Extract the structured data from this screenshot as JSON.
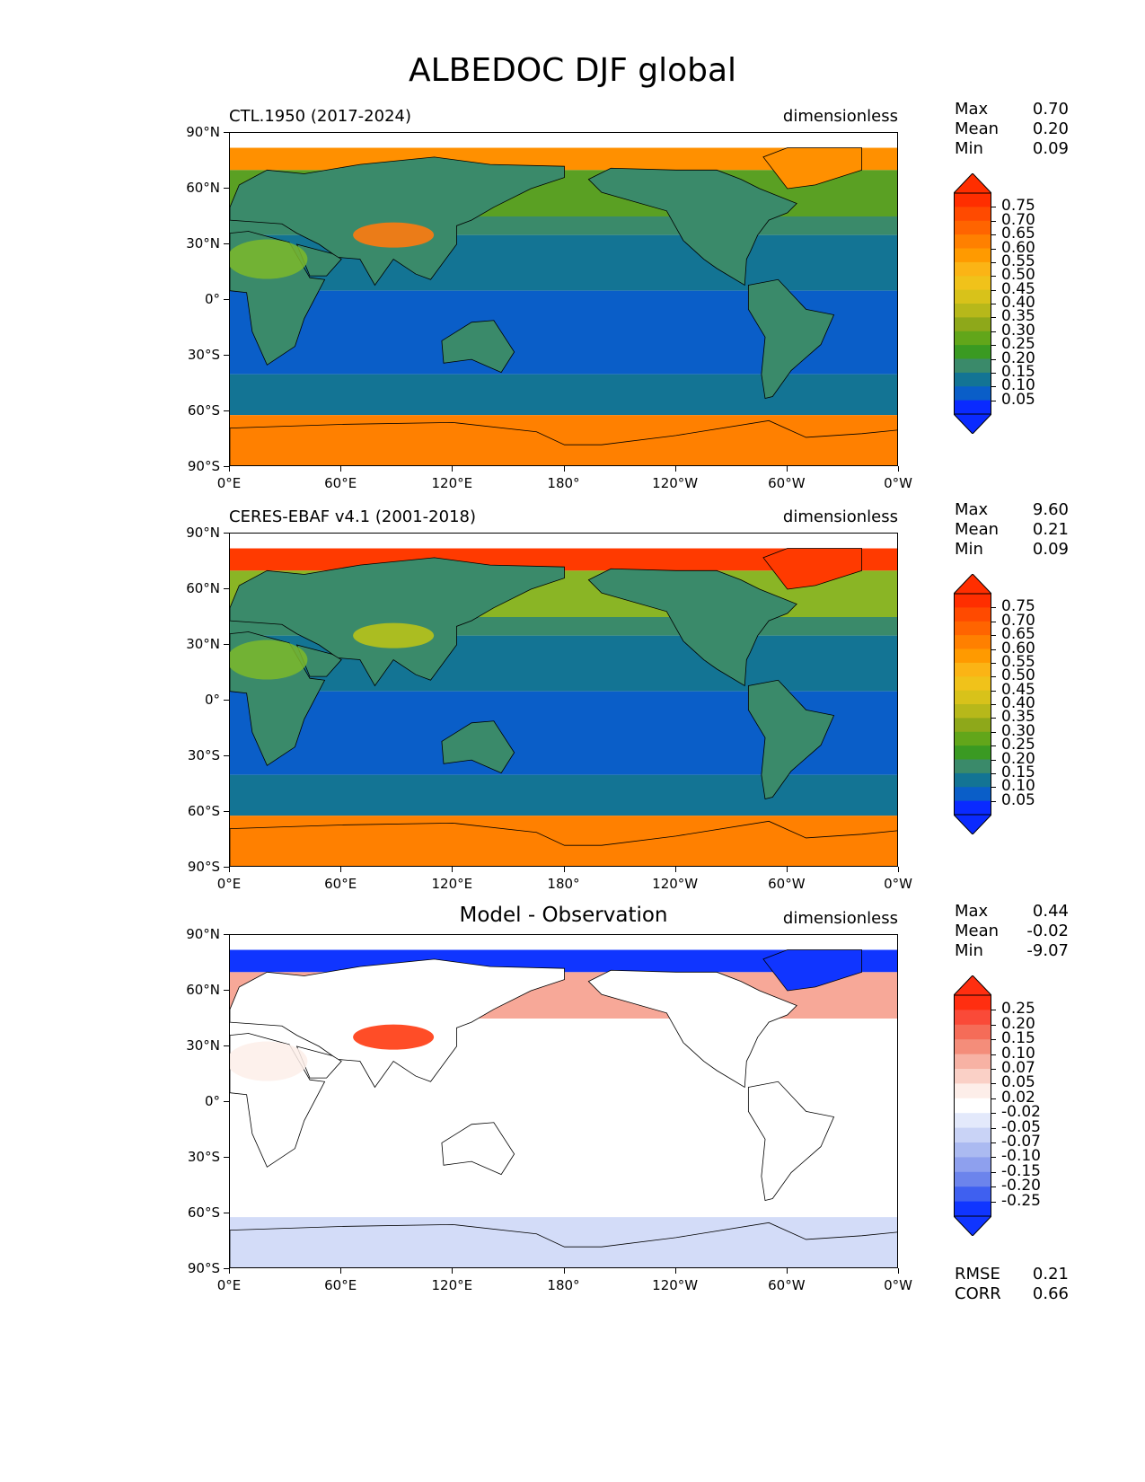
{
  "figure": {
    "title": "ALBEDOC DJF global"
  },
  "axes": {
    "y_ticks": [
      "90°N",
      "60°N",
      "30°N",
      "0°",
      "30°S",
      "60°S",
      "90°S"
    ],
    "x_ticks": [
      "0°E",
      "60°E",
      "120°E",
      "180°",
      "120°W",
      "60°W",
      "0°W"
    ]
  },
  "panels": [
    {
      "title_left": "CTL.1950 (2017-2024)",
      "title_center": "",
      "units": "dimensionless",
      "stats": [
        {
          "label": "Max",
          "value": "0.70"
        },
        {
          "label": "Mean",
          "value": "0.20"
        },
        {
          "label": "Min",
          "value": "0.09"
        }
      ],
      "colorbar": {
        "labels": [
          "0.75",
          "0.70",
          "0.65",
          "0.60",
          "0.55",
          "0.50",
          "0.45",
          "0.40",
          "0.35",
          "0.30",
          "0.25",
          "0.20",
          "0.15",
          "0.10",
          "0.05"
        ],
        "colors": [
          "#ff2e00",
          "#ff4a00",
          "#ff6400",
          "#ff8000",
          "#ff9a00",
          "#fbb415",
          "#f0c21a",
          "#d8c21a",
          "#b7b81a",
          "#8ea81a",
          "#62a61a",
          "#3a9a22",
          "#3a8a6a",
          "#137494",
          "#0a5ec8",
          "#0a2aff"
        ],
        "top_color": "#ff2e00",
        "bottom_color": "#0a2aff"
      },
      "regions": {
        "arctic": "#ff9000",
        "mid_north_land": "#5aa023",
        "mid_north_ocean": "#3a8a6a",
        "subtrop_ocean": "#137494",
        "trop_ocean": "#0a5ec8",
        "south_ocean": "#137494",
        "south_ice": "#ff8000",
        "land": "#3a8a6a",
        "desert": "#7db82a",
        "tibet": "#ff7a10"
      }
    },
    {
      "title_left": "CERES-EBAF v4.1 (2001-2018)",
      "title_center": "",
      "units": "dimensionless",
      "stats": [
        {
          "label": "Max",
          "value": "9.60"
        },
        {
          "label": "Mean",
          "value": "0.21"
        },
        {
          "label": "Min",
          "value": "0.09"
        }
      ],
      "colorbar": {
        "labels": [
          "0.75",
          "0.70",
          "0.65",
          "0.60",
          "0.55",
          "0.50",
          "0.45",
          "0.40",
          "0.35",
          "0.30",
          "0.25",
          "0.20",
          "0.15",
          "0.10",
          "0.05"
        ],
        "colors": [
          "#ff2e00",
          "#ff4a00",
          "#ff6400",
          "#ff8000",
          "#ff9a00",
          "#fbb415",
          "#f0c21a",
          "#d8c21a",
          "#b7b81a",
          "#8ea81a",
          "#62a61a",
          "#3a9a22",
          "#3a8a6a",
          "#137494",
          "#0a5ec8",
          "#0a2aff"
        ],
        "top_color": "#ff2e00",
        "bottom_color": "#0a2aff"
      },
      "regions": {
        "arctic": "#ff3a00",
        "mid_north_land": "#8ab525",
        "mid_north_ocean": "#3a8a6a",
        "subtrop_ocean": "#137494",
        "trop_ocean": "#0a5ec8",
        "south_ocean": "#137494",
        "south_ice": "#ff8000",
        "land": "#3a8a6a",
        "desert": "#7db82a",
        "tibet": "#b8c21a"
      }
    },
    {
      "title_left": "",
      "title_center": "Model - Observation",
      "units": "dimensionless",
      "stats": [
        {
          "label": "Max",
          "value": "0.44"
        },
        {
          "label": "Mean",
          "value": "-0.02"
        },
        {
          "label": "Min",
          "value": "-9.07"
        }
      ],
      "colorbar": {
        "labels": [
          "0.25",
          "0.20",
          "0.15",
          "0.10",
          "0.07",
          "0.05",
          "0.02",
          "-0.02",
          "-0.05",
          "-0.07",
          "-0.10",
          "-0.15",
          "-0.20",
          "-0.25"
        ],
        "colors": [
          "#ff2e10",
          "#fa4a38",
          "#f56c58",
          "#f48d7a",
          "#f7b2a4",
          "#fad0c6",
          "#fdeee9",
          "#ffffff",
          "#e3e9fb",
          "#c9d3f6",
          "#abbaf1",
          "#8ea0ee",
          "#6c84ec",
          "#3f60f0",
          "#1035ff"
        ],
        "top_color": "#ff2e10",
        "bottom_color": "#1035ff"
      },
      "regions": {
        "arctic": "#1035ff",
        "mid_north_land": "#f7a898",
        "mid_north_ocean": "#ffffff",
        "subtrop_ocean": "#ffffff",
        "trop_ocean": "#ffffff",
        "south_ocean": "#ffffff",
        "south_ice": "#d3dcf8",
        "land": "#ffffff",
        "desert": "#fdeee9",
        "tibet": "#ff3a10"
      }
    }
  ],
  "bottom_stats": [
    {
      "label": "RMSE",
      "value": "0.21"
    },
    {
      "label": "CORR",
      "value": "0.66"
    }
  ]
}
